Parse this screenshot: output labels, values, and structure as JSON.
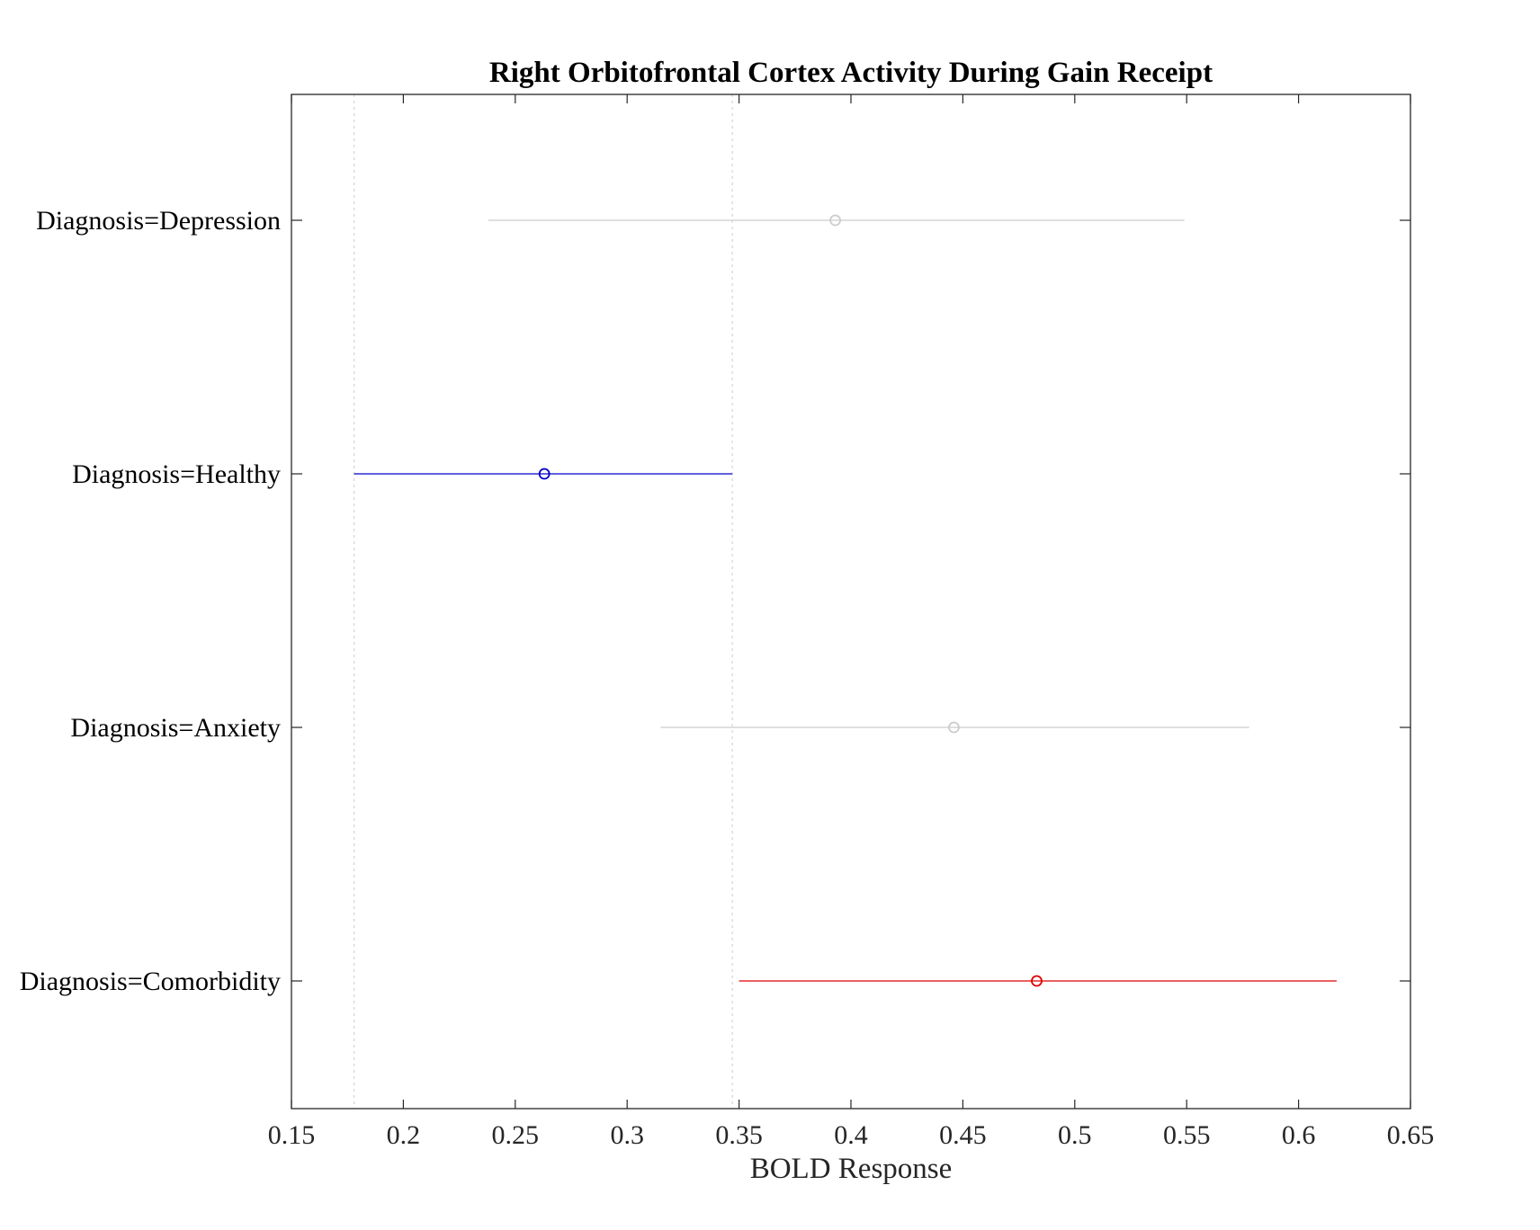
{
  "chart_data": {
    "type": "scatter",
    "title": "Right Orbitofrontal Cortex Activity During Gain Receipt",
    "xlabel": "BOLD Response",
    "ylabel": "",
    "xlim": [
      0.15,
      0.65
    ],
    "xticks": [
      "0.15",
      "0.2",
      "0.25",
      "0.3",
      "0.35",
      "0.4",
      "0.45",
      "0.5",
      "0.55",
      "0.6",
      "0.65"
    ],
    "reference_lines": [
      0.178,
      0.347
    ],
    "grid": false,
    "categories": [
      "Diagnosis=Depression",
      "Diagnosis=Healthy",
      "Diagnosis=Anxiety",
      "Diagnosis=Comorbidity"
    ],
    "series": [
      {
        "category": "Diagnosis=Depression",
        "estimate": 0.393,
        "lower": 0.238,
        "upper": 0.549,
        "color": "#cccccc"
      },
      {
        "category": "Diagnosis=Healthy",
        "estimate": 0.263,
        "lower": 0.178,
        "upper": 0.347,
        "color": "#0000cc"
      },
      {
        "category": "Diagnosis=Anxiety",
        "estimate": 0.446,
        "lower": 0.315,
        "upper": 0.578,
        "color": "#cccccc"
      },
      {
        "category": "Diagnosis=Comorbidity",
        "estimate": 0.483,
        "lower": 0.35,
        "upper": 0.617,
        "color": "#dd0000"
      }
    ]
  }
}
